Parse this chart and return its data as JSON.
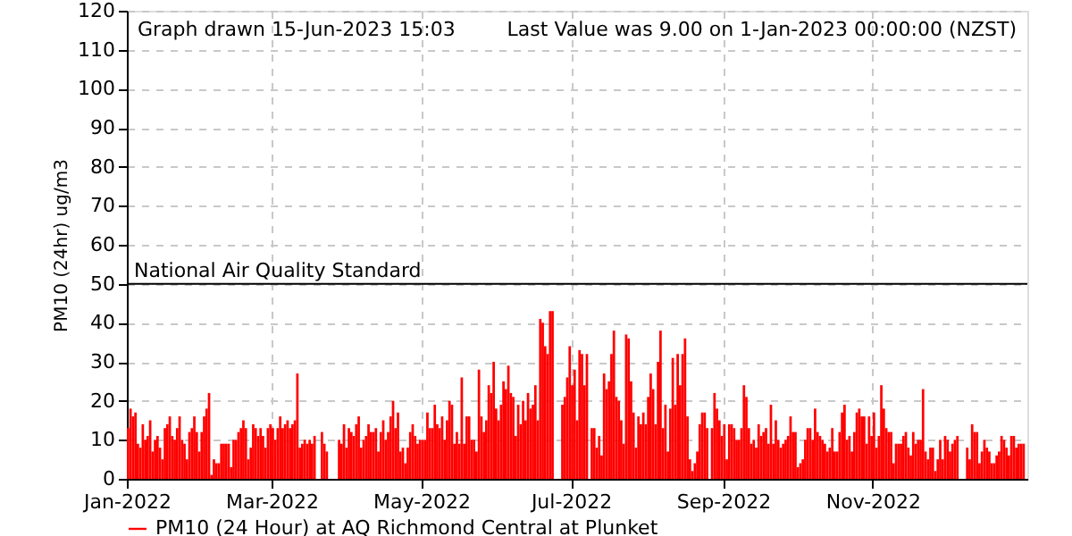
{
  "chart_data": {
    "type": "bar",
    "ylabel": "PM10 (24hr) ug/m3",
    "annotations": [
      "Graph drawn 15-Jun-2023 15:03",
      "Last Value was 9.00 on  1-Jan-2023 00:00:00 (NZST)"
    ],
    "x": [
      "2022-01-01",
      "2022-01-02",
      "2022-01-03",
      "2022-01-04",
      "2022-01-05",
      "2022-01-06",
      "2022-01-07",
      "2022-01-08",
      "2022-01-09",
      "2022-01-10",
      "2022-01-11",
      "2022-01-12",
      "2022-01-13",
      "2022-01-14",
      "2022-01-15",
      "2022-01-16",
      "2022-01-17",
      "2022-01-18",
      "2022-01-19",
      "2022-01-20",
      "2022-01-21",
      "2022-01-22",
      "2022-01-23",
      "2022-01-24",
      "2022-01-25",
      "2022-01-26",
      "2022-01-27",
      "2022-01-28",
      "2022-01-29",
      "2022-01-30",
      "2022-01-31",
      "2022-02-01",
      "2022-02-02",
      "2022-02-03",
      "2022-02-04",
      "2022-02-05",
      "2022-02-06",
      "2022-02-07",
      "2022-02-08",
      "2022-02-09",
      "2022-02-10",
      "2022-02-11",
      "2022-02-12",
      "2022-02-13",
      "2022-02-14",
      "2022-02-15",
      "2022-02-16",
      "2022-02-17",
      "2022-02-18",
      "2022-02-19",
      "2022-02-20",
      "2022-02-21",
      "2022-02-22",
      "2022-02-23",
      "2022-02-24",
      "2022-02-25",
      "2022-02-26",
      "2022-02-27",
      "2022-02-28",
      "2022-03-01",
      "2022-03-02",
      "2022-03-03",
      "2022-03-04",
      "2022-03-05",
      "2022-03-06",
      "2022-03-07",
      "2022-03-08",
      "2022-03-09",
      "2022-03-10",
      "2022-03-11",
      "2022-03-12",
      "2022-03-13",
      "2022-03-14",
      "2022-03-15",
      "2022-03-16",
      "2022-03-17",
      "2022-03-18",
      "2022-03-19",
      "2022-03-20",
      "2022-03-21",
      "2022-03-22",
      "2022-03-23",
      "2022-03-24",
      "2022-03-25",
      "2022-03-26",
      "2022-03-27",
      "2022-03-28",
      "2022-03-29",
      "2022-03-30",
      "2022-03-31",
      "2022-04-01",
      "2022-04-02",
      "2022-04-03",
      "2022-04-04",
      "2022-04-05",
      "2022-04-06",
      "2022-04-07",
      "2022-04-08",
      "2022-04-09",
      "2022-04-10",
      "2022-04-11",
      "2022-04-12",
      "2022-04-13",
      "2022-04-14",
      "2022-04-15",
      "2022-04-16",
      "2022-04-17",
      "2022-04-18",
      "2022-04-19",
      "2022-04-20",
      "2022-04-21",
      "2022-04-22",
      "2022-04-23",
      "2022-04-24",
      "2022-04-25",
      "2022-04-26",
      "2022-04-27",
      "2022-04-28",
      "2022-04-29",
      "2022-04-30",
      "2022-05-01",
      "2022-05-02",
      "2022-05-03",
      "2022-05-04",
      "2022-05-05",
      "2022-05-06",
      "2022-05-07",
      "2022-05-08",
      "2022-05-09",
      "2022-05-10",
      "2022-05-11",
      "2022-05-12",
      "2022-05-13",
      "2022-05-14",
      "2022-05-15",
      "2022-05-16",
      "2022-05-17",
      "2022-05-18",
      "2022-05-19",
      "2022-05-20",
      "2022-05-21",
      "2022-05-22",
      "2022-05-23",
      "2022-05-24",
      "2022-05-25",
      "2022-05-26",
      "2022-05-27",
      "2022-05-28",
      "2022-05-29",
      "2022-05-30",
      "2022-05-31",
      "2022-06-01",
      "2022-06-02",
      "2022-06-03",
      "2022-06-04",
      "2022-06-05",
      "2022-06-06",
      "2022-06-07",
      "2022-06-08",
      "2022-06-09",
      "2022-06-10",
      "2022-06-11",
      "2022-06-12",
      "2022-06-13",
      "2022-06-14",
      "2022-06-15",
      "2022-06-16",
      "2022-06-17",
      "2022-06-18",
      "2022-06-19",
      "2022-06-20",
      "2022-06-21",
      "2022-06-22",
      "2022-06-23",
      "2022-06-24",
      "2022-06-25",
      "2022-06-26",
      "2022-06-27",
      "2022-06-28",
      "2022-06-29",
      "2022-06-30",
      "2022-07-01",
      "2022-07-02",
      "2022-07-03",
      "2022-07-04",
      "2022-07-05",
      "2022-07-06",
      "2022-07-07",
      "2022-07-08",
      "2022-07-09",
      "2022-07-10",
      "2022-07-11",
      "2022-07-12",
      "2022-07-13",
      "2022-07-14",
      "2022-07-15",
      "2022-07-16",
      "2022-07-17",
      "2022-07-18",
      "2022-07-19",
      "2022-07-20",
      "2022-07-21",
      "2022-07-22",
      "2022-07-23",
      "2022-07-24",
      "2022-07-25",
      "2022-07-26",
      "2022-07-27",
      "2022-07-28",
      "2022-07-29",
      "2022-07-30",
      "2022-07-31",
      "2022-08-01",
      "2022-08-02",
      "2022-08-03",
      "2022-08-04",
      "2022-08-05",
      "2022-08-06",
      "2022-08-07",
      "2022-08-08",
      "2022-08-09",
      "2022-08-10",
      "2022-08-11",
      "2022-08-12",
      "2022-08-13",
      "2022-08-14",
      "2022-08-15",
      "2022-08-16",
      "2022-08-17",
      "2022-08-18",
      "2022-08-19",
      "2022-08-20",
      "2022-08-21",
      "2022-08-22",
      "2022-08-23",
      "2022-08-24",
      "2022-08-25",
      "2022-08-26",
      "2022-08-27",
      "2022-08-28",
      "2022-08-29",
      "2022-08-30",
      "2022-08-31",
      "2022-09-01",
      "2022-09-02",
      "2022-09-03",
      "2022-09-04",
      "2022-09-05",
      "2022-09-06",
      "2022-09-07",
      "2022-09-08",
      "2022-09-09",
      "2022-09-10",
      "2022-09-11",
      "2022-09-12",
      "2022-09-13",
      "2022-09-14",
      "2022-09-15",
      "2022-09-16",
      "2022-09-17",
      "2022-09-18",
      "2022-09-19",
      "2022-09-20",
      "2022-09-21",
      "2022-09-22",
      "2022-09-23",
      "2022-09-24",
      "2022-09-25",
      "2022-09-26",
      "2022-09-27",
      "2022-09-28",
      "2022-09-29",
      "2022-09-30",
      "2022-10-01",
      "2022-10-02",
      "2022-10-03",
      "2022-10-04",
      "2022-10-05",
      "2022-10-06",
      "2022-10-07",
      "2022-10-08",
      "2022-10-09",
      "2022-10-10",
      "2022-10-11",
      "2022-10-12",
      "2022-10-13",
      "2022-10-14",
      "2022-10-15",
      "2022-10-16",
      "2022-10-17",
      "2022-10-18",
      "2022-10-19",
      "2022-10-20",
      "2022-10-21",
      "2022-10-22",
      "2022-10-23",
      "2022-10-24",
      "2022-10-25",
      "2022-10-26",
      "2022-10-27",
      "2022-10-28",
      "2022-10-29",
      "2022-10-30",
      "2022-10-31",
      "2022-11-01",
      "2022-11-02",
      "2022-11-03",
      "2022-11-04",
      "2022-11-05",
      "2022-11-06",
      "2022-11-07",
      "2022-11-08",
      "2022-11-09",
      "2022-11-10",
      "2022-11-11",
      "2022-11-12",
      "2022-11-13",
      "2022-11-14",
      "2022-11-15",
      "2022-11-16",
      "2022-11-17",
      "2022-11-18",
      "2022-11-19",
      "2022-11-20",
      "2022-11-21",
      "2022-11-22",
      "2022-11-23",
      "2022-11-24",
      "2022-11-25",
      "2022-11-26",
      "2022-11-27",
      "2022-11-28",
      "2022-11-29",
      "2022-11-30",
      "2022-12-01",
      "2022-12-02",
      "2022-12-03",
      "2022-12-04",
      "2022-12-05",
      "2022-12-06",
      "2022-12-07",
      "2022-12-08",
      "2022-12-09",
      "2022-12-10",
      "2022-12-11",
      "2022-12-12",
      "2022-12-13",
      "2022-12-14",
      "2022-12-15",
      "2022-12-16",
      "2022-12-17",
      "2022-12-18",
      "2022-12-19",
      "2022-12-20",
      "2022-12-21",
      "2022-12-22",
      "2022-12-23",
      "2022-12-24",
      "2022-12-25",
      "2022-12-26",
      "2022-12-27",
      "2022-12-28",
      "2022-12-29",
      "2022-12-30",
      "2022-12-31",
      "2023-01-01"
    ],
    "series": [
      {
        "name": "PM10 (24 Hour) at AQ Richmond Central at Plunket",
        "color": "#ff0000",
        "values": [
          13,
          18,
          16,
          17,
          9,
          8,
          14,
          10,
          11,
          15,
          7,
          10,
          11,
          8,
          5,
          13,
          14,
          16,
          11,
          10,
          13,
          16,
          10,
          9,
          5,
          12,
          13,
          16,
          12,
          7,
          12,
          16,
          18,
          22,
          1,
          5,
          4,
          4,
          9,
          9,
          9,
          9,
          3,
          10,
          10,
          12,
          13,
          15,
          13,
          5,
          8,
          14,
          13,
          11,
          13,
          11,
          8,
          13,
          14,
          13,
          10,
          13,
          16,
          13,
          14,
          15,
          13,
          14,
          15,
          27,
          8,
          9,
          10,
          9,
          10,
          9,
          11,
          null,
          null,
          12,
          9,
          7,
          null,
          null,
          null,
          null,
          10,
          9,
          14,
          8,
          13,
          12,
          11,
          14,
          16,
          8,
          10,
          11,
          14,
          12,
          12,
          13,
          7,
          12,
          15,
          10,
          12,
          16,
          20,
          13,
          17,
          7,
          8,
          4,
          8,
          12,
          14,
          11,
          9,
          10,
          10,
          10,
          17,
          13,
          13,
          19,
          14,
          13,
          16,
          10,
          15,
          20,
          19,
          9,
          12,
          9,
          26,
          9,
          16,
          16,
          10,
          10,
          7,
          28,
          16,
          12,
          15,
          24,
          22,
          30,
          18,
          15,
          19,
          25,
          23,
          29,
          22,
          21,
          11,
          19,
          14,
          20,
          15,
          22,
          18,
          19,
          24,
          15,
          41,
          40,
          34,
          32,
          43,
          43,
          null,
          null,
          null,
          19,
          21,
          26,
          34,
          24,
          28,
          15,
          33,
          32,
          24,
          32,
          null,
          13,
          13,
          8,
          11,
          6,
          27,
          23,
          25,
          32,
          38,
          21,
          20,
          15,
          9,
          37,
          36,
          25,
          17,
          8,
          16,
          14,
          17,
          14,
          21,
          27,
          23,
          14,
          30,
          38,
          13,
          19,
          7,
          18,
          31,
          19,
          32,
          24,
          32,
          36,
          16,
          5,
          2,
          4,
          7,
          14,
          17,
          17,
          13,
          null,
          13,
          22,
          18,
          15,
          11,
          14,
          5,
          14,
          14,
          13,
          10,
          10,
          13,
          24,
          21,
          13,
          9,
          10,
          8,
          14,
          11,
          12,
          13,
          9,
          19,
          9,
          15,
          10,
          8,
          9,
          10,
          11,
          16,
          12,
          12,
          3,
          4,
          5,
          10,
          13,
          13,
          10,
          18,
          12,
          11,
          10,
          9,
          7,
          8,
          13,
          7,
          7,
          12,
          17,
          19,
          10,
          11,
          7,
          12,
          17,
          18,
          16,
          16,
          9,
          16,
          11,
          17,
          8,
          11,
          24,
          18,
          13,
          12,
          12,
          4,
          9,
          9,
          9,
          11,
          12,
          8,
          6,
          12,
          9,
          10,
          10,
          23,
          7,
          5,
          8,
          8,
          2,
          5,
          10,
          5,
          11,
          10,
          7,
          9,
          10,
          11,
          null,
          null,
          null,
          8,
          5,
          14,
          12,
          12,
          4,
          7,
          10,
          8,
          7,
          4,
          4,
          6,
          7,
          11,
          10,
          8,
          6,
          11,
          11,
          8,
          9,
          9,
          9
        ]
      }
    ],
    "xlim": [
      "2022-01-01",
      "2023-01-03"
    ],
    "xticks": [
      {
        "value": "2022-01-01",
        "label": "Jan-2022"
      },
      {
        "value": "2022-03-01",
        "label": "Mar-2022"
      },
      {
        "value": "2022-05-01",
        "label": "May-2022"
      },
      {
        "value": "2022-07-01",
        "label": "Jul-2022"
      },
      {
        "value": "2022-09-01",
        "label": "Sep-2022"
      },
      {
        "value": "2022-11-01",
        "label": "Nov-2022"
      }
    ],
    "ylim": [
      0,
      120
    ],
    "yticks": [
      0,
      10,
      20,
      30,
      40,
      50,
      60,
      70,
      80,
      90,
      100,
      110,
      120
    ],
    "ref_lines": [
      {
        "axis": "y",
        "value": 50,
        "label": "National Air Quality Standard",
        "color": "#000000",
        "line_style": "solid"
      }
    ],
    "grid": true,
    "legend": "bottom"
  }
}
